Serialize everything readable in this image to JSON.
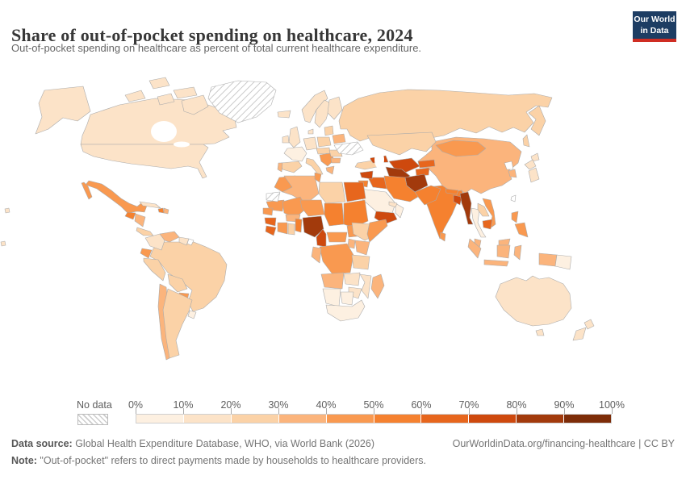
{
  "header": {
    "title": "Share of out-of-pocket spending on healthcare, 2024",
    "subtitle": "Out-of-pocket spending on healthcare as percent of total current healthcare expenditure."
  },
  "logo": {
    "line1": "Our World",
    "line2": "in Data",
    "bg": "#1d3d63",
    "accent": "#cf2d23"
  },
  "legend": {
    "no_data_label": "No data",
    "ticks": [
      "0%",
      "10%",
      "20%",
      "30%",
      "40%",
      "50%",
      "60%",
      "70%",
      "80%",
      "90%",
      "100%"
    ]
  },
  "footer": {
    "source_label": "Data source:",
    "source_text": " Global Health Expenditure Database, WHO, via World Bank (2026)",
    "link_text": "OurWorldinData.org/financing-healthcare | CC BY",
    "note_label": "Note:",
    "note_text": " \"Out-of-pocket\" refers to direct payments made by households to healthcare providers."
  },
  "chart_data": {
    "type": "choropleth",
    "title": "Share of out-of-pocket spending on healthcare",
    "year": 2024,
    "unit": "% of total current healthcare expenditure",
    "axis_range": [
      0,
      100
    ],
    "legend_position": "bottom",
    "palette": [
      "#fdf0e1",
      "#fce3c8",
      "#fbd2a7",
      "#fbb47c",
      "#f99950",
      "#f5812f",
      "#e7661d",
      "#ce490e",
      "#a23a0c",
      "#7d2c08"
    ],
    "bin_labels": [
      "0-10%",
      "10-20%",
      "20-30%",
      "30-40%",
      "40-50%",
      "50-60%",
      "60-70%",
      "70-80%",
      "80-90%",
      "90-100%"
    ],
    "no_data": {
      "label": "No data",
      "style": "hatched"
    },
    "regions": [
      {
        "id": "canada",
        "name": "Canada",
        "bin": 1
      },
      {
        "id": "usa",
        "name": "United States",
        "bin": 1
      },
      {
        "id": "alaska",
        "name": "Alaska (US)",
        "bin": 1
      },
      {
        "id": "greenland",
        "name": "Greenland",
        "bin": "no-data"
      },
      {
        "id": "mexico",
        "name": "Mexico",
        "bin": 4
      },
      {
        "id": "guatemala",
        "name": "Guatemala",
        "bin": 5
      },
      {
        "id": "honduras-nicaragua",
        "name": "Honduras / Nicaragua",
        "bin": 3
      },
      {
        "id": "costa-rica-panama",
        "name": "Costa Rica / Panama",
        "bin": 2
      },
      {
        "id": "cuba",
        "name": "Cuba",
        "bin": 1
      },
      {
        "id": "haiti",
        "name": "Haiti",
        "bin": 5
      },
      {
        "id": "dominican-republic",
        "name": "Dominican Republic",
        "bin": 3
      },
      {
        "id": "colombia",
        "name": "Colombia",
        "bin": 1
      },
      {
        "id": "venezuela",
        "name": "Venezuela",
        "bin": 3
      },
      {
        "id": "guyana-suriname",
        "name": "Guyana / Suriname",
        "bin": 1
      },
      {
        "id": "french-guiana",
        "name": "French Guiana",
        "bin": "no-data-white"
      },
      {
        "id": "ecuador",
        "name": "Ecuador",
        "bin": 4
      },
      {
        "id": "peru",
        "name": "Peru",
        "bin": 2
      },
      {
        "id": "brazil",
        "name": "Brazil",
        "bin": 2
      },
      {
        "id": "bolivia",
        "name": "Bolivia",
        "bin": 2
      },
      {
        "id": "paraguay",
        "name": "Paraguay",
        "bin": 4
      },
      {
        "id": "chile",
        "name": "Chile",
        "bin": 3
      },
      {
        "id": "argentina",
        "name": "Argentina",
        "bin": 2
      },
      {
        "id": "uruguay",
        "name": "Uruguay",
        "bin": 0
      },
      {
        "id": "iceland",
        "name": "Iceland",
        "bin": 1
      },
      {
        "id": "uk",
        "name": "United Kingdom",
        "bin": 1
      },
      {
        "id": "ireland",
        "name": "Ireland",
        "bin": 1
      },
      {
        "id": "norway",
        "name": "Norway",
        "bin": 1
      },
      {
        "id": "sweden",
        "name": "Sweden",
        "bin": 1
      },
      {
        "id": "finland",
        "name": "Finland",
        "bin": 1
      },
      {
        "id": "denmark",
        "name": "Denmark",
        "bin": 1
      },
      {
        "id": "france",
        "name": "France",
        "bin": 0
      },
      {
        "id": "germany",
        "name": "Germany",
        "bin": 1
      },
      {
        "id": "poland",
        "name": "Poland",
        "bin": 2
      },
      {
        "id": "central-europe",
        "name": "Czechia / Hungary",
        "bin": 2
      },
      {
        "id": "spain",
        "name": "Spain",
        "bin": 2
      },
      {
        "id": "portugal",
        "name": "Portugal",
        "bin": 3
      },
      {
        "id": "italy",
        "name": "Italy",
        "bin": 2
      },
      {
        "id": "balkans",
        "name": "Western Balkans",
        "bin": 4
      },
      {
        "id": "greece",
        "name": "Greece",
        "bin": 3
      },
      {
        "id": "romania",
        "name": "Romania",
        "bin": 2
      },
      {
        "id": "bulgaria",
        "name": "Bulgaria",
        "bin": 3
      },
      {
        "id": "baltics",
        "name": "Baltic states",
        "bin": 2
      },
      {
        "id": "belarus",
        "name": "Belarus",
        "bin": 3
      },
      {
        "id": "ukraine",
        "name": "Ukraine",
        "bin": "no-data"
      },
      {
        "id": "russia",
        "name": "Russia",
        "bin": 2
      },
      {
        "id": "turkey",
        "name": "Turkey",
        "bin": 2
      },
      {
        "id": "caucasus",
        "name": "Armenia / Azerbaijan",
        "bin": 7
      },
      {
        "id": "kazakhstan",
        "name": "Kazakhstan",
        "bin": 2
      },
      {
        "id": "uzbekistan",
        "name": "Uzbekistan",
        "bin": 7
      },
      {
        "id": "turkmenistan",
        "name": "Turkmenistan",
        "bin": 8
      },
      {
        "id": "kyrgyzstan",
        "name": "Kyrgyzstan",
        "bin": 6
      },
      {
        "id": "tajikistan",
        "name": "Tajikistan",
        "bin": 6
      },
      {
        "id": "afghanistan",
        "name": "Afghanistan",
        "bin": 8
      },
      {
        "id": "pakistan",
        "name": "Pakistan",
        "bin": 5
      },
      {
        "id": "iran",
        "name": "Iran",
        "bin": 5
      },
      {
        "id": "iraq",
        "name": "Iraq",
        "bin": 6
      },
      {
        "id": "syria",
        "name": "Syria",
        "bin": 7
      },
      {
        "id": "jordan",
        "name": "Jordan",
        "bin": 5
      },
      {
        "id": "saudi-arabia",
        "name": "Saudi Arabia",
        "bin": 0
      },
      {
        "id": "yemen",
        "name": "Yemen",
        "bin": 7
      },
      {
        "id": "oman",
        "name": "Oman",
        "bin": 0
      },
      {
        "id": "uae",
        "name": "United Arab Emirates",
        "bin": 1
      },
      {
        "id": "morocco",
        "name": "Morocco",
        "bin": 4
      },
      {
        "id": "western-sahara",
        "name": "Western Sahara",
        "bin": "no-data"
      },
      {
        "id": "algeria",
        "name": "Algeria",
        "bin": 3
      },
      {
        "id": "tunisia",
        "name": "Tunisia",
        "bin": 4
      },
      {
        "id": "libya",
        "name": "Libya",
        "bin": 2
      },
      {
        "id": "egypt",
        "name": "Egypt",
        "bin": 6
      },
      {
        "id": "mauritania",
        "name": "Mauritania",
        "bin": 4
      },
      {
        "id": "mali",
        "name": "Mali",
        "bin": 4
      },
      {
        "id": "niger",
        "name": "Niger",
        "bin": 4
      },
      {
        "id": "chad",
        "name": "Chad",
        "bin": 5
      },
      {
        "id": "sudan",
        "name": "Sudan",
        "bin": 5
      },
      {
        "id": "senegal",
        "name": "Senegal",
        "bin": 4
      },
      {
        "id": "guinea",
        "name": "Guinea",
        "bin": 6
      },
      {
        "id": "sierra-leone",
        "name": "Sierra Leone / Liberia",
        "bin": 6
      },
      {
        "id": "cote-divoire",
        "name": "Cote d'Ivoire",
        "bin": 4
      },
      {
        "id": "ghana",
        "name": "Ghana",
        "bin": 2
      },
      {
        "id": "burkina-faso",
        "name": "Burkina Faso",
        "bin": 3
      },
      {
        "id": "benin-togo",
        "name": "Benin / Togo",
        "bin": 5
      },
      {
        "id": "nigeria",
        "name": "Nigeria",
        "bin": 8
      },
      {
        "id": "cameroon",
        "name": "Cameroon",
        "bin": 7
      },
      {
        "id": "car",
        "name": "Central African Republic",
        "bin": 4
      },
      {
        "id": "south-sudan",
        "name": "South Sudan",
        "bin": 4
      },
      {
        "id": "ethiopia",
        "name": "Ethiopia",
        "bin": 2
      },
      {
        "id": "somalia",
        "name": "Somalia",
        "bin": 4
      },
      {
        "id": "kenya",
        "name": "Kenya",
        "bin": 3
      },
      {
        "id": "uganda",
        "name": "Uganda",
        "bin": 3
      },
      {
        "id": "drc",
        "name": "Democratic Republic of Congo",
        "bin": 4
      },
      {
        "id": "congo-gabon",
        "name": "Congo / Gabon",
        "bin": 3
      },
      {
        "id": "angola",
        "name": "Angola",
        "bin": 3
      },
      {
        "id": "zambia",
        "name": "Zambia",
        "bin": 1
      },
      {
        "id": "tanzania",
        "name": "Tanzania",
        "bin": 2
      },
      {
        "id": "mozambique",
        "name": "Mozambique / Malawi",
        "bin": 1
      },
      {
        "id": "zimbabwe",
        "name": "Zimbabwe",
        "bin": 1
      },
      {
        "id": "namibia",
        "name": "Namibia",
        "bin": 0
      },
      {
        "id": "botswana",
        "name": "Botswana",
        "bin": 0
      },
      {
        "id": "south-africa",
        "name": "South Africa",
        "bin": 0
      },
      {
        "id": "madagascar",
        "name": "Madagascar",
        "bin": 3
      },
      {
        "id": "india",
        "name": "India",
        "bin": 5
      },
      {
        "id": "sri-lanka",
        "name": "Sri Lanka",
        "bin": 4
      },
      {
        "id": "nepal",
        "name": "Nepal",
        "bin": 5
      },
      {
        "id": "bangladesh",
        "name": "Bangladesh",
        "bin": 7
      },
      {
        "id": "myanmar",
        "name": "Myanmar",
        "bin": 8
      },
      {
        "id": "thailand",
        "name": "Thailand",
        "bin": 0
      },
      {
        "id": "laos",
        "name": "Laos",
        "bin": 2
      },
      {
        "id": "vietnam",
        "name": "Vietnam",
        "bin": 4
      },
      {
        "id": "cambodia",
        "name": "Cambodia",
        "bin": 6
      },
      {
        "id": "malaysia",
        "name": "Malaysia",
        "bin": 3
      },
      {
        "id": "indonesia",
        "name": "Indonesia",
        "bin": 3
      },
      {
        "id": "philippines",
        "name": "Philippines",
        "bin": 4
      },
      {
        "id": "china",
        "name": "China",
        "bin": 3
      },
      {
        "id": "mongolia",
        "name": "Mongolia",
        "bin": 4
      },
      {
        "id": "japan",
        "name": "Japan",
        "bin": 1
      },
      {
        "id": "north-korea",
        "name": "North Korea",
        "bin": "no-data-white"
      },
      {
        "id": "south-korea",
        "name": "South Korea",
        "bin": 3
      },
      {
        "id": "taiwan",
        "name": "Taiwan",
        "bin": "no-data-white"
      },
      {
        "id": "australia",
        "name": "Australia",
        "bin": 1
      },
      {
        "id": "new-zealand",
        "name": "New Zealand",
        "bin": 1
      },
      {
        "id": "png",
        "name": "Papua New Guinea",
        "bin": 0
      },
      {
        "id": "pacific-islands",
        "name": "Pacific islands",
        "bin": 1
      }
    ]
  }
}
